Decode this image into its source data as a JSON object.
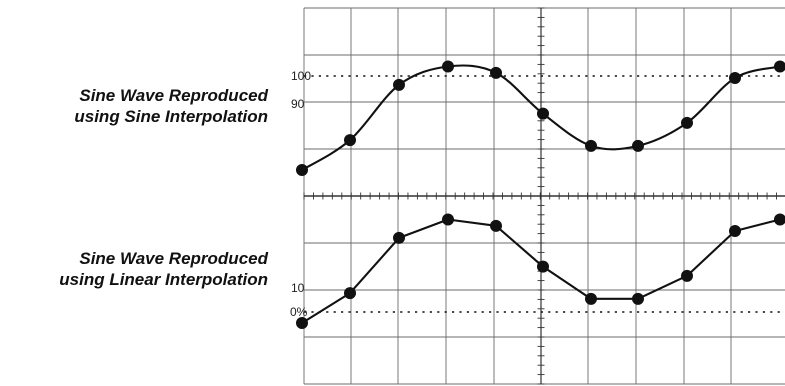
{
  "captions": {
    "top": [
      "Sine Wave Reproduced",
      "using Sine Interpolation"
    ],
    "bottom": [
      "Sine Wave Reproduced",
      "using Linear Interpolation"
    ]
  },
  "levels": {
    "top_upper": "100",
    "top_lower": "90",
    "bottom_upper": "10",
    "bottom_lower": "0%"
  },
  "chart_data": [
    {
      "type": "line",
      "panel": "top",
      "interpolation": "sine",
      "samples": [
        0.0,
        0.26,
        0.74,
        0.9,
        0.845,
        0.49,
        0.21,
        0.21,
        0.41,
        0.8,
        0.9
      ],
      "reference_levels": [
        "100",
        "90"
      ]
    },
    {
      "type": "line",
      "panel": "bottom",
      "interpolation": "linear",
      "samples": [
        0.0,
        0.26,
        0.74,
        0.9,
        0.845,
        0.49,
        0.21,
        0.21,
        0.41,
        0.8,
        0.9
      ],
      "reference_levels": [
        "10",
        "0%"
      ]
    }
  ]
}
